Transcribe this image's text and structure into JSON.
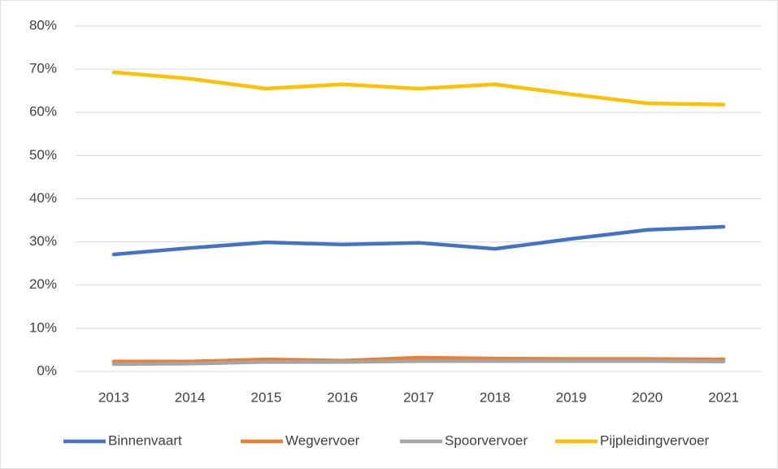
{
  "chart_data": {
    "type": "line",
    "categories": [
      "2013",
      "2014",
      "2015",
      "2016",
      "2017",
      "2018",
      "2019",
      "2020",
      "2021"
    ],
    "series": [
      {
        "name": "Binnenvaart",
        "color": "#4472c4",
        "values": [
          27.1,
          28.6,
          29.9,
          29.4,
          29.8,
          28.4,
          30.7,
          32.8,
          33.5
        ]
      },
      {
        "name": "Wegvervoer",
        "color": "#ed7d31",
        "values": [
          2.3,
          2.3,
          2.8,
          2.5,
          3.2,
          3.0,
          2.9,
          2.9,
          2.8
        ]
      },
      {
        "name": "Spoorvervoer",
        "color": "#a5a5a5",
        "values": [
          1.7,
          1.8,
          2.2,
          2.2,
          2.4,
          2.4,
          2.4,
          2.4,
          2.3
        ]
      },
      {
        "name": "Pijpleidingvervoer",
        "color": "#ffc000",
        "values": [
          69.3,
          67.8,
          65.5,
          66.5,
          65.5,
          66.5,
          64.2,
          62.1,
          61.8
        ]
      }
    ],
    "ylim": [
      0,
      80
    ],
    "yticks": [
      {
        "value": 0,
        "label": "0%"
      },
      {
        "value": 10,
        "label": "10%"
      },
      {
        "value": 20,
        "label": "20%"
      },
      {
        "value": 30,
        "label": "30%"
      },
      {
        "value": 40,
        "label": "40%"
      },
      {
        "value": 50,
        "label": "50%"
      },
      {
        "value": 60,
        "label": "60%"
      },
      {
        "value": 70,
        "label": "70%"
      },
      {
        "value": 80,
        "label": "80%"
      }
    ],
    "grid": true,
    "legend": "bottom"
  }
}
